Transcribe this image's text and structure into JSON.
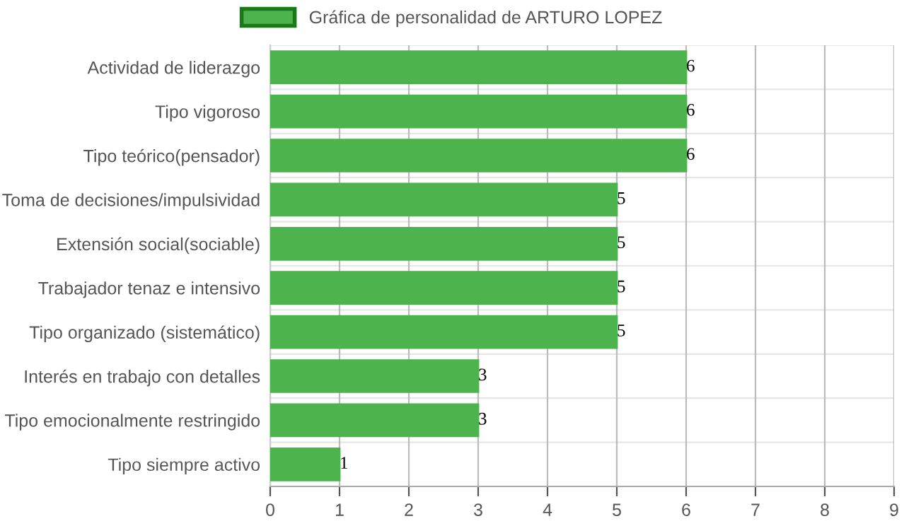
{
  "chart_data": {
    "type": "bar",
    "orientation": "horizontal",
    "categories": [
      "Actividad de liderazgo",
      "Tipo vigoroso",
      "Tipo teórico(pensador)",
      "Toma de decisiones/impulsividad",
      "Extensión social(sociable)",
      "Trabajador tenaz e intensivo",
      "Tipo organizado (sistemático)",
      "Interés en trabajo con detalles",
      "Tipo emocionalmente restringido",
      "Tipo siempre activo"
    ],
    "series": [
      {
        "name": "Gráfica de personalidad de ARTURO LOPEZ",
        "color": "#4db34d",
        "values": [
          6,
          6,
          6,
          5,
          5,
          5,
          5,
          3,
          3,
          1
        ]
      }
    ],
    "xlim": [
      0,
      9
    ],
    "xticks": [
      0,
      1,
      2,
      3,
      4,
      5,
      6,
      7,
      8,
      9
    ],
    "grid": true,
    "legend": "top",
    "data_labels": true
  }
}
